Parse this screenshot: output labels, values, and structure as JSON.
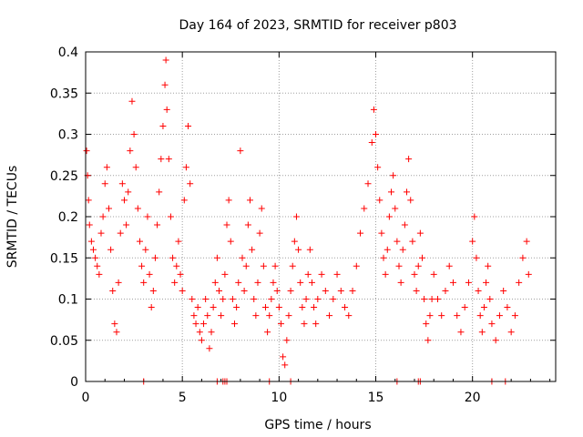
{
  "chart_data": {
    "type": "scatter",
    "title": "Day 164 of 2023, SRMTID for receiver p803",
    "xlabel": "GPS time / hours",
    "ylabel": "SRMTID / TECUs",
    "xlim": [
      0,
      24.3
    ],
    "ylim": [
      0,
      0.4
    ],
    "xticks": [
      0,
      5,
      10,
      15,
      20
    ],
    "xtick_labels": [
      "0",
      "5",
      "10",
      "15",
      "20"
    ],
    "yticks": [
      0,
      0.05,
      0.1,
      0.15,
      0.2,
      0.25,
      0.3,
      0.35,
      0.4
    ],
    "ytick_labels": [
      "0",
      "0.05",
      "0.1",
      "0.15",
      "0.2",
      "0.25",
      "0.3",
      "0.35",
      "0.4"
    ],
    "grid": true,
    "marker": "+",
    "color": "#ff0000",
    "series": [
      {
        "name": "SRMTID",
        "points": [
          [
            0.05,
            0.28
          ],
          [
            0.1,
            0.25
          ],
          [
            0.15,
            0.22
          ],
          [
            0.2,
            0.19
          ],
          [
            0.3,
            0.17
          ],
          [
            0.4,
            0.16
          ],
          [
            0.5,
            0.15
          ],
          [
            0.6,
            0.14
          ],
          [
            0.7,
            0.13
          ],
          [
            0.8,
            0.18
          ],
          [
            0.9,
            0.2
          ],
          [
            1.0,
            0.24
          ],
          [
            1.1,
            0.26
          ],
          [
            1.2,
            0.21
          ],
          [
            1.3,
            0.16
          ],
          [
            1.4,
            0.11
          ],
          [
            1.5,
            0.07
          ],
          [
            1.6,
            0.06
          ],
          [
            1.7,
            0.12
          ],
          [
            1.8,
            0.18
          ],
          [
            1.9,
            0.24
          ],
          [
            2.0,
            0.22
          ],
          [
            2.1,
            0.19
          ],
          [
            2.2,
            0.23
          ],
          [
            2.3,
            0.28
          ],
          [
            2.4,
            0.34
          ],
          [
            2.5,
            0.3
          ],
          [
            2.6,
            0.26
          ],
          [
            2.7,
            0.21
          ],
          [
            2.8,
            0.17
          ],
          [
            2.9,
            0.14
          ],
          [
            3.0,
            0.12
          ],
          [
            3.1,
            0.16
          ],
          [
            3.2,
            0.2
          ],
          [
            3.3,
            0.13
          ],
          [
            3.4,
            0.09
          ],
          [
            3.5,
            0.11
          ],
          [
            3.6,
            0.15
          ],
          [
            3.7,
            0.19
          ],
          [
            3.8,
            0.23
          ],
          [
            3.9,
            0.27
          ],
          [
            4.0,
            0.31
          ],
          [
            4.1,
            0.36
          ],
          [
            4.15,
            0.39
          ],
          [
            4.2,
            0.33
          ],
          [
            4.3,
            0.27
          ],
          [
            4.4,
            0.2
          ],
          [
            4.5,
            0.15
          ],
          [
            4.6,
            0.12
          ],
          [
            4.7,
            0.14
          ],
          [
            4.8,
            0.17
          ],
          [
            4.9,
            0.13
          ],
          [
            5.0,
            0.11
          ],
          [
            5.1,
            0.22
          ],
          [
            5.2,
            0.26
          ],
          [
            5.3,
            0.31
          ],
          [
            5.4,
            0.24
          ],
          [
            5.5,
            0.1
          ],
          [
            5.6,
            0.08
          ],
          [
            5.7,
            0.07
          ],
          [
            5.8,
            0.09
          ],
          [
            5.9,
            0.06
          ],
          [
            6.0,
            0.05
          ],
          [
            6.1,
            0.07
          ],
          [
            6.2,
            0.1
          ],
          [
            6.3,
            0.08
          ],
          [
            6.4,
            0.04
          ],
          [
            6.5,
            0.06
          ],
          [
            6.6,
            0.09
          ],
          [
            6.7,
            0.12
          ],
          [
            6.8,
            0.15
          ],
          [
            6.9,
            0.11
          ],
          [
            7.0,
            0.08
          ],
          [
            7.1,
            0.1
          ],
          [
            7.2,
            0.13
          ],
          [
            7.3,
            0.19
          ],
          [
            7.4,
            0.22
          ],
          [
            7.5,
            0.17
          ],
          [
            7.6,
            0.1
          ],
          [
            7.7,
            0.07
          ],
          [
            7.8,
            0.09
          ],
          [
            7.9,
            0.12
          ],
          [
            8.0,
            0.28
          ],
          [
            8.1,
            0.15
          ],
          [
            8.2,
            0.11
          ],
          [
            8.3,
            0.14
          ],
          [
            8.4,
            0.19
          ],
          [
            8.5,
            0.22
          ],
          [
            8.6,
            0.16
          ],
          [
            8.7,
            0.1
          ],
          [
            8.8,
            0.08
          ],
          [
            8.9,
            0.12
          ],
          [
            9.0,
            0.18
          ],
          [
            9.1,
            0.21
          ],
          [
            9.2,
            0.14
          ],
          [
            9.3,
            0.09
          ],
          [
            9.4,
            0.06
          ],
          [
            9.5,
            0.08
          ],
          [
            9.6,
            0.1
          ],
          [
            9.7,
            0.12
          ],
          [
            9.8,
            0.14
          ],
          [
            9.9,
            0.11
          ],
          [
            10.0,
            0.09
          ],
          [
            10.1,
            0.07
          ],
          [
            10.2,
            0.03
          ],
          [
            10.3,
            0.02
          ],
          [
            10.4,
            0.05
          ],
          [
            10.5,
            0.08
          ],
          [
            10.6,
            0.11
          ],
          [
            10.7,
            0.14
          ],
          [
            10.8,
            0.17
          ],
          [
            10.9,
            0.2
          ],
          [
            11.0,
            0.16
          ],
          [
            11.1,
            0.12
          ],
          [
            11.2,
            0.09
          ],
          [
            11.3,
            0.07
          ],
          [
            11.4,
            0.1
          ],
          [
            11.5,
            0.13
          ],
          [
            11.6,
            0.16
          ],
          [
            11.7,
            0.12
          ],
          [
            11.8,
            0.09
          ],
          [
            11.9,
            0.07
          ],
          [
            12.0,
            0.1
          ],
          [
            12.2,
            0.13
          ],
          [
            12.4,
            0.11
          ],
          [
            12.6,
            0.08
          ],
          [
            12.8,
            0.1
          ],
          [
            13.0,
            0.13
          ],
          [
            13.2,
            0.11
          ],
          [
            13.4,
            0.09
          ],
          [
            13.6,
            0.08
          ],
          [
            13.8,
            0.11
          ],
          [
            14.0,
            0.14
          ],
          [
            14.2,
            0.18
          ],
          [
            14.4,
            0.21
          ],
          [
            14.6,
            0.24
          ],
          [
            14.8,
            0.29
          ],
          [
            14.9,
            0.33
          ],
          [
            15.0,
            0.3
          ],
          [
            15.1,
            0.26
          ],
          [
            15.2,
            0.22
          ],
          [
            15.3,
            0.18
          ],
          [
            15.4,
            0.15
          ],
          [
            15.5,
            0.13
          ],
          [
            15.6,
            0.16
          ],
          [
            15.7,
            0.2
          ],
          [
            15.8,
            0.23
          ],
          [
            15.9,
            0.25
          ],
          [
            16.0,
            0.21
          ],
          [
            16.1,
            0.17
          ],
          [
            16.2,
            0.14
          ],
          [
            16.3,
            0.12
          ],
          [
            16.4,
            0.16
          ],
          [
            16.5,
            0.19
          ],
          [
            16.6,
            0.23
          ],
          [
            16.7,
            0.27
          ],
          [
            16.8,
            0.22
          ],
          [
            16.9,
            0.17
          ],
          [
            17.0,
            0.13
          ],
          [
            17.1,
            0.11
          ],
          [
            17.2,
            0.14
          ],
          [
            17.3,
            0.18
          ],
          [
            17.4,
            0.15
          ],
          [
            17.5,
            0.1
          ],
          [
            17.6,
            0.07
          ],
          [
            17.7,
            0.05
          ],
          [
            17.8,
            0.08
          ],
          [
            17.9,
            0.1
          ],
          [
            18.0,
            0.13
          ],
          [
            18.2,
            0.1
          ],
          [
            18.4,
            0.08
          ],
          [
            18.6,
            0.11
          ],
          [
            18.8,
            0.14
          ],
          [
            19.0,
            0.12
          ],
          [
            19.2,
            0.08
          ],
          [
            19.4,
            0.06
          ],
          [
            19.6,
            0.09
          ],
          [
            19.8,
            0.12
          ],
          [
            20.0,
            0.17
          ],
          [
            20.1,
            0.2
          ],
          [
            20.2,
            0.15
          ],
          [
            20.3,
            0.11
          ],
          [
            20.4,
            0.08
          ],
          [
            20.5,
            0.06
          ],
          [
            20.6,
            0.09
          ],
          [
            20.7,
            0.12
          ],
          [
            20.8,
            0.14
          ],
          [
            20.9,
            0.1
          ],
          [
            21.0,
            0.07
          ],
          [
            21.2,
            0.05
          ],
          [
            21.4,
            0.08
          ],
          [
            21.6,
            0.11
          ],
          [
            21.8,
            0.09
          ],
          [
            22.0,
            0.06
          ],
          [
            22.2,
            0.08
          ],
          [
            22.4,
            0.12
          ],
          [
            22.6,
            0.15
          ],
          [
            22.8,
            0.17
          ],
          [
            22.9,
            0.13
          ]
        ]
      }
    ],
    "zero_markers_x": [
      3.0,
      6.8,
      7.1,
      7.2,
      7.3,
      9.5,
      10.6,
      16.1,
      17.2,
      17.3,
      21.0,
      21.7
    ]
  }
}
